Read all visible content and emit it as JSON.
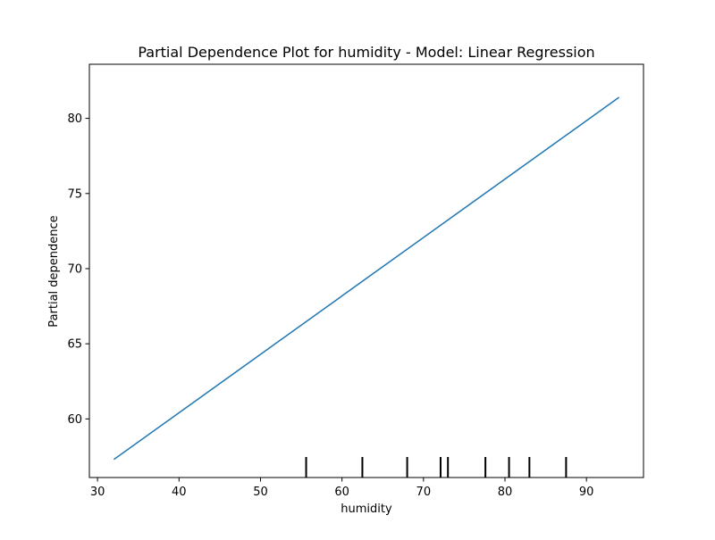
{
  "chart_data": {
    "type": "line",
    "title": "Partial Dependence Plot for humidity - Model: Linear Regression",
    "xlabel": "humidity",
    "ylabel": "Partial dependence",
    "xlim": [
      29,
      97
    ],
    "ylim": [
      56.1,
      83.6
    ],
    "xticks": [
      30,
      40,
      50,
      60,
      70,
      80,
      90
    ],
    "yticks": [
      60,
      65,
      70,
      75,
      80
    ],
    "series": [
      {
        "x": [
          32,
          94
        ],
        "y": [
          57.3,
          81.4
        ]
      }
    ],
    "rug": {
      "x": [
        55.6,
        62.5,
        68.0,
        72.1,
        73.0,
        77.6,
        80.5,
        83.0,
        87.5
      ]
    },
    "grid": false,
    "legend": false,
    "colors": {
      "line": "#1f77b4",
      "rug": "#000000",
      "axes": "#000000"
    }
  }
}
